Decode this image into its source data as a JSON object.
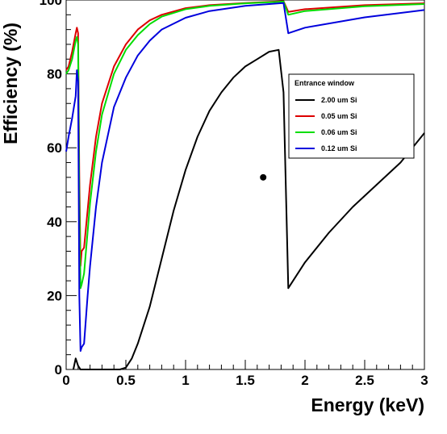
{
  "chart_data": {
    "type": "line",
    "title": "",
    "xlabel": "Energy (keV)",
    "ylabel": "Efficiency (%)",
    "xlim": [
      0,
      3
    ],
    "ylim": [
      0,
      100
    ],
    "x_ticks": [
      "0",
      "0.5",
      "1",
      "1.5",
      "2",
      "2.5",
      "3"
    ],
    "y_ticks": [
      "0",
      "20",
      "40",
      "60",
      "80",
      "100"
    ],
    "grid": false,
    "legend": {
      "title": "Entrance window",
      "placement": "top-right"
    },
    "series": [
      {
        "name": "2.00 um Si",
        "color": "#000000",
        "points": [
          [
            0.06,
            0
          ],
          [
            0.08,
            3
          ],
          [
            0.1,
            1
          ],
          [
            0.12,
            0
          ],
          [
            0.45,
            0
          ],
          [
            0.5,
            0.5
          ],
          [
            0.55,
            3
          ],
          [
            0.6,
            7
          ],
          [
            0.7,
            17
          ],
          [
            0.8,
            30
          ],
          [
            0.9,
            43
          ],
          [
            1.0,
            54
          ],
          [
            1.1,
            63
          ],
          [
            1.2,
            70
          ],
          [
            1.3,
            75
          ],
          [
            1.4,
            79
          ],
          [
            1.5,
            82
          ],
          [
            1.6,
            84
          ],
          [
            1.7,
            86
          ],
          [
            1.78,
            86.5
          ],
          [
            1.82,
            75
          ],
          [
            1.86,
            22
          ],
          [
            1.9,
            24
          ],
          [
            2.0,
            29
          ],
          [
            2.2,
            37
          ],
          [
            2.4,
            44
          ],
          [
            2.6,
            50
          ],
          [
            2.8,
            56
          ],
          [
            3.0,
            64
          ]
        ]
      },
      {
        "name": "0.05 um Si",
        "color": "#dd0000",
        "points": [
          [
            0.0,
            81
          ],
          [
            0.02,
            82
          ],
          [
            0.05,
            86
          ],
          [
            0.08,
            91
          ],
          [
            0.09,
            92.5
          ],
          [
            0.1,
            91
          ],
          [
            0.11,
            52
          ],
          [
            0.12,
            28
          ],
          [
            0.13,
            32
          ],
          [
            0.15,
            33
          ],
          [
            0.2,
            50
          ],
          [
            0.25,
            63
          ],
          [
            0.3,
            72
          ],
          [
            0.4,
            82
          ],
          [
            0.5,
            88
          ],
          [
            0.6,
            92
          ],
          [
            0.7,
            94.5
          ],
          [
            0.8,
            96
          ],
          [
            1.0,
            97.8
          ],
          [
            1.2,
            98.6
          ],
          [
            1.5,
            99.2
          ],
          [
            1.78,
            99.6
          ],
          [
            1.82,
            99.7
          ],
          [
            1.86,
            96.8
          ],
          [
            2.0,
            97.5
          ],
          [
            2.5,
            98.6
          ],
          [
            3.0,
            99.1
          ]
        ]
      },
      {
        "name": "0.06 um Si",
        "color": "#00dd00",
        "points": [
          [
            0.0,
            80
          ],
          [
            0.02,
            81
          ],
          [
            0.05,
            84
          ],
          [
            0.08,
            89
          ],
          [
            0.09,
            90
          ],
          [
            0.1,
            88
          ],
          [
            0.11,
            45
          ],
          [
            0.12,
            22
          ],
          [
            0.13,
            23
          ],
          [
            0.15,
            26
          ],
          [
            0.2,
            45
          ],
          [
            0.25,
            59
          ],
          [
            0.3,
            69
          ],
          [
            0.4,
            80
          ],
          [
            0.5,
            86.5
          ],
          [
            0.6,
            90.5
          ],
          [
            0.7,
            93.5
          ],
          [
            0.8,
            95.5
          ],
          [
            1.0,
            97.5
          ],
          [
            1.2,
            98.4
          ],
          [
            1.5,
            99.1
          ],
          [
            1.78,
            99.5
          ],
          [
            1.82,
            99.6
          ],
          [
            1.86,
            96
          ],
          [
            2.0,
            97
          ],
          [
            2.5,
            98.3
          ],
          [
            3.0,
            98.9
          ]
        ]
      },
      {
        "name": "0.12 um Si",
        "color": "#0000dd",
        "points": [
          [
            0.0,
            59
          ],
          [
            0.02,
            63
          ],
          [
            0.05,
            68
          ],
          [
            0.08,
            74
          ],
          [
            0.09,
            81
          ],
          [
            0.1,
            78
          ],
          [
            0.11,
            20
          ],
          [
            0.12,
            5
          ],
          [
            0.13,
            6
          ],
          [
            0.15,
            7
          ],
          [
            0.18,
            20
          ],
          [
            0.2,
            28
          ],
          [
            0.25,
            44
          ],
          [
            0.3,
            56
          ],
          [
            0.4,
            71
          ],
          [
            0.5,
            79
          ],
          [
            0.6,
            85
          ],
          [
            0.7,
            89
          ],
          [
            0.8,
            92
          ],
          [
            1.0,
            95.2
          ],
          [
            1.2,
            97
          ],
          [
            1.5,
            98.4
          ],
          [
            1.78,
            99.1
          ],
          [
            1.82,
            99.2
          ],
          [
            1.86,
            91
          ],
          [
            2.0,
            92.5
          ],
          [
            2.5,
            95.3
          ],
          [
            3.0,
            97.3
          ]
        ]
      }
    ],
    "annotations": [
      {
        "type": "marker",
        "shape": "dot",
        "x": 1.65,
        "y": 52
      }
    ]
  }
}
